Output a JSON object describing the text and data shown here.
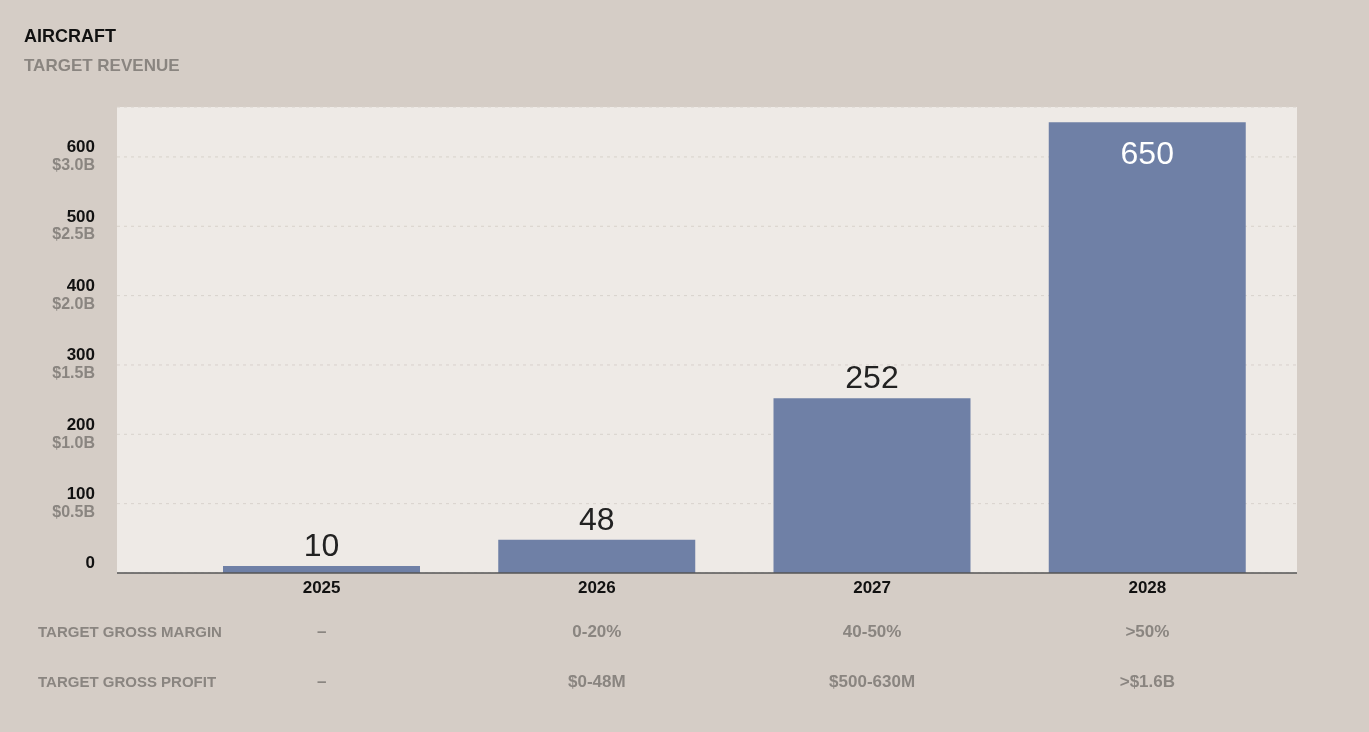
{
  "chart_data": {
    "type": "bar",
    "title": "AIRCRAFT",
    "subtitle": "TARGET REVENUE",
    "categories": [
      "2025",
      "2026",
      "2027",
      "2028"
    ],
    "values": [
      10,
      48,
      252,
      650
    ],
    "color": "#6f80a6",
    "data_labels": true,
    "ylim": [
      0,
      672
    ],
    "yticks": [
      0,
      100,
      200,
      300,
      400,
      500,
      600
    ],
    "y2lim": [
      0,
      3.36
    ],
    "y2ticks": [
      {
        "value": 0.5,
        "label": "$0.5B"
      },
      {
        "value": 1.0,
        "label": "$1.0B"
      },
      {
        "value": 1.5,
        "label": "$1.5B"
      },
      {
        "value": 2.0,
        "label": "$2.0B"
      },
      {
        "value": 2.5,
        "label": "$2.5B"
      },
      {
        "value": 3.0,
        "label": "$3.0B"
      }
    ],
    "grid": "y",
    "annotations": [
      "TARGET GROSS MARGIN",
      "–",
      "0-20%",
      "40-50%",
      ">50%",
      "TARGET GROSS PROFIT",
      "–",
      "$0-48M",
      "$500-630M",
      ">$1.6B"
    ]
  }
}
